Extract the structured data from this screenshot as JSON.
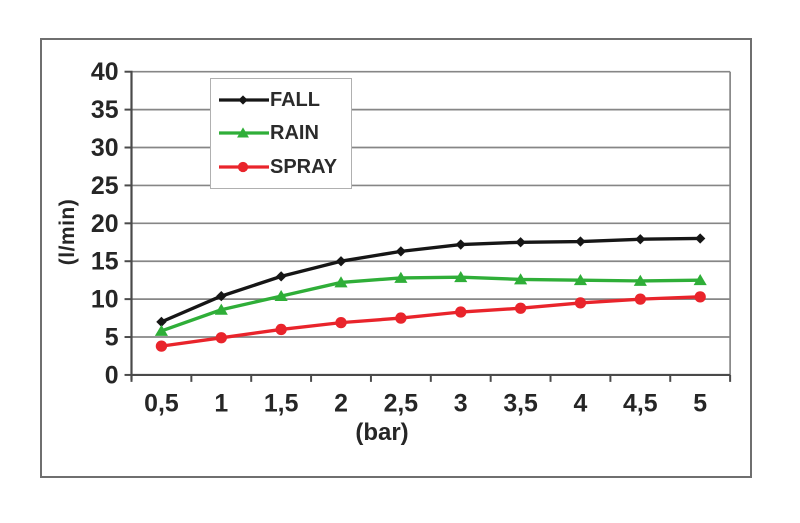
{
  "chart_data": {
    "type": "line",
    "title": "",
    "categories": [
      "0,5",
      "1",
      "1,5",
      "2",
      "2,5",
      "3",
      "3,5",
      "4",
      "4,5",
      "5"
    ],
    "series": [
      {
        "name": "FALL",
        "color": "#161616",
        "marker": "diamond",
        "values": [
          7.0,
          10.4,
          13.0,
          15.0,
          16.3,
          17.2,
          17.5,
          17.6,
          17.9,
          18.0
        ]
      },
      {
        "name": "RAIN",
        "color": "#2fae38",
        "marker": "triangle",
        "values": [
          5.8,
          8.6,
          10.4,
          12.2,
          12.8,
          12.9,
          12.6,
          12.5,
          12.4,
          12.5
        ]
      },
      {
        "name": "SPRAY",
        "color": "#e9242b",
        "marker": "circle",
        "values": [
          3.8,
          4.9,
          6.0,
          6.9,
          7.5,
          8.3,
          8.8,
          9.5,
          10.0,
          10.3
        ]
      }
    ],
    "xlabel": "(bar)",
    "ylabel": "(l/min)",
    "ylim": [
      0,
      40
    ],
    "y_tick_step": 5,
    "y_tick_labels": [
      "0",
      "5",
      "10",
      "15",
      "20",
      "25",
      "30",
      "35",
      "40"
    ],
    "grid": true,
    "legend_position": "top-left-inside"
  },
  "style": {
    "background": "#ffffff",
    "figure_border": "#6f6f6f",
    "gridline": "#868686",
    "axis": "#4a4a4a",
    "tick_label": "#262626",
    "legend_border": "#b0b0b0"
  }
}
